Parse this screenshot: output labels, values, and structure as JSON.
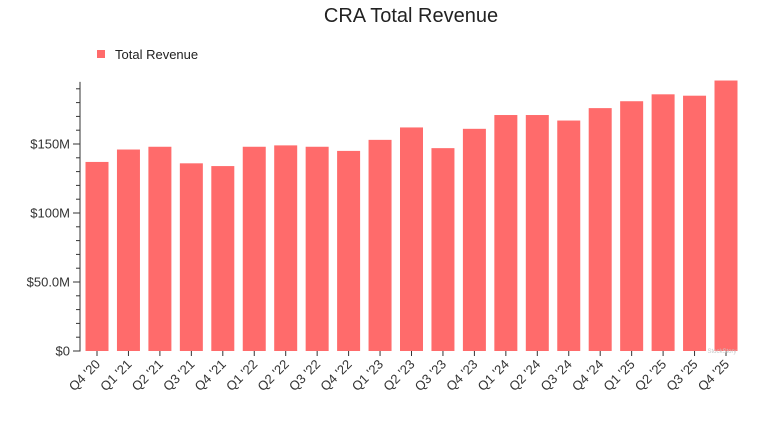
{
  "chart_data": {
    "type": "bar",
    "title": "CRA Total Revenue",
    "xlabel": "",
    "ylabel": "",
    "categories": [
      "Q4 '20",
      "Q1 '21",
      "Q2 '21",
      "Q3 '21",
      "Q4 '21",
      "Q1 '22",
      "Q2 '22",
      "Q3 '22",
      "Q4 '22",
      "Q1 '23",
      "Q2 '23",
      "Q3 '23",
      "Q4 '23",
      "Q1 '24",
      "Q2 '24",
      "Q3 '24",
      "Q4 '24",
      "Q1 '25",
      "Q2 '25",
      "Q3 '25",
      "Q4 '25"
    ],
    "series": [
      {
        "name": "Total Revenue",
        "values": [
          137,
          146,
          148,
          136,
          134,
          148,
          149,
          148,
          145,
          153,
          162,
          147,
          161,
          171,
          171,
          167,
          176,
          181,
          186,
          185,
          196
        ]
      }
    ],
    "value_unit": "$M",
    "ylim": [
      0,
      200
    ],
    "y_ticks": [
      {
        "value": 0,
        "label": "$0"
      },
      {
        "value": 50,
        "label": "$50.0M"
      },
      {
        "value": 100,
        "label": "$100M"
      },
      {
        "value": 150,
        "label": "$150M"
      }
    ],
    "legend_position": "top-left",
    "grid": false
  },
  "colors": {
    "bar": "#ff6b6b",
    "axis": "#333333",
    "text": "#222222"
  },
  "watermark": "StockStory"
}
